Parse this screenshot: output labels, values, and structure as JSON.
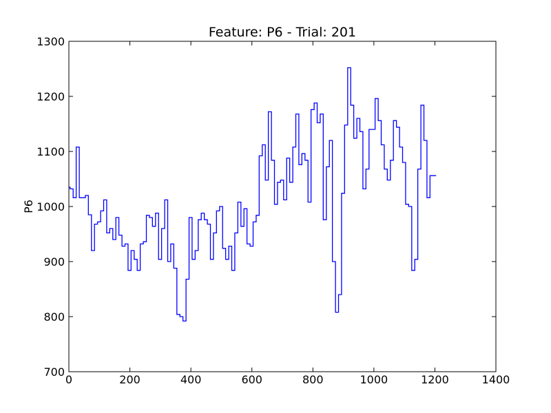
{
  "chart_data": {
    "type": "line",
    "title": "Feature: P6 - Trial: 201",
    "xlabel": "",
    "ylabel": "P6",
    "xlim": [
      0,
      1400
    ],
    "ylim": [
      700,
      1300
    ],
    "xticks": [
      0,
      200,
      400,
      600,
      800,
      1000,
      1200,
      1400
    ],
    "yticks": [
      700,
      800,
      900,
      1000,
      1100,
      1200,
      1300
    ],
    "grid": false,
    "line_color": "#0000ff",
    "drawstyle": "steps-post",
    "series": [
      {
        "x": [
          0,
          4,
          14,
          24,
          34,
          44,
          54,
          64,
          74,
          84,
          94,
          104,
          114,
          124,
          134,
          144,
          154,
          164,
          174,
          184,
          194,
          204,
          214,
          224,
          234,
          244,
          254,
          264,
          274,
          284,
          294,
          304,
          314,
          324,
          334,
          344,
          354,
          364,
          374,
          384,
          394,
          404,
          414,
          424,
          434,
          444,
          454,
          464,
          474,
          484,
          494,
          504,
          514,
          524,
          534,
          544,
          554,
          564,
          574,
          584,
          594,
          604,
          614,
          624,
          634,
          644,
          654,
          664,
          674,
          684,
          694,
          704,
          714,
          724,
          734,
          744,
          754,
          764,
          774,
          784,
          794,
          804,
          814,
          824,
          834,
          844,
          854,
          864,
          874,
          884,
          894,
          904,
          914,
          924,
          934,
          944,
          954,
          964,
          974,
          984,
          994,
          1004,
          1014,
          1024,
          1034,
          1044,
          1054,
          1064,
          1074,
          1084,
          1094,
          1104,
          1114,
          1124,
          1134,
          1144,
          1154,
          1164,
          1174,
          1184,
          1194,
          1204
        ],
        "y": [
          1035,
          1032,
          1016,
          1108,
          1016,
          1016,
          1020,
          985,
          920,
          968,
          972,
          992,
          1012,
          952,
          960,
          940,
          980,
          948,
          928,
          932,
          884,
          920,
          904,
          884,
          932,
          936,
          984,
          980,
          964,
          988,
          904,
          960,
          1012,
          900,
          932,
          888,
          804,
          800,
          792,
          868,
          980,
          904,
          920,
          976,
          988,
          976,
          968,
          904,
          952,
          992,
          1000,
          924,
          904,
          928,
          884,
          952,
          1008,
          964,
          996,
          932,
          928,
          972,
          984,
          1092,
          1112,
          1048,
          1172,
          1084,
          1004,
          1044,
          1048,
          1012,
          1088,
          1044,
          1108,
          1168,
          1076,
          1096,
          1084,
          1008,
          1176,
          1188,
          1152,
          1168,
          976,
          1072,
          1120,
          900,
          808,
          840,
          1024,
          1148,
          1252,
          1184,
          1124,
          1160,
          1136,
          1032,
          1068,
          1140,
          1140,
          1196,
          1156,
          1112,
          1068,
          1048,
          1084,
          1156,
          1144,
          1108,
          1080,
          1004,
          1000,
          884,
          904,
          1068,
          1184,
          1120,
          1016,
          1056,
          1056,
          1056
        ]
      }
    ]
  }
}
